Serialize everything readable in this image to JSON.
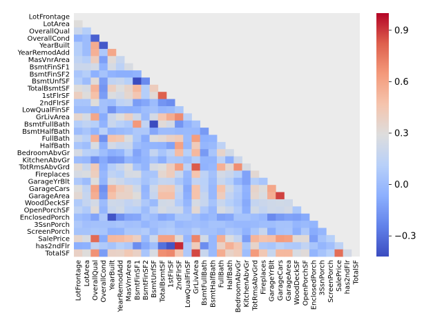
{
  "chart_data": {
    "type": "heatmap",
    "subtype": "lower-triangle correlation matrix",
    "title": "",
    "xlabel": "",
    "ylabel": "",
    "colormap": "coolwarm",
    "masked_color": "#ebebeb",
    "vmin": -0.42,
    "vmax": 1.0,
    "colorbar_ticks": [
      -0.3,
      0.0,
      0.3,
      0.6,
      0.9
    ],
    "colorbar_tick_labels": [
      "−0.3",
      "0.0",
      "0.3",
      "0.6",
      "0.9"
    ],
    "variables": [
      "LotFrontage",
      "LotArea",
      "OverallQual",
      "OverallCond",
      "YearBuilt",
      "YearRemodAdd",
      "MasVnrArea",
      "BsmtFinSF1",
      "BsmtFinSF2",
      "BsmtUnfSF",
      "TotalBsmtSF",
      "1stFlrSF",
      "2ndFlrSF",
      "LowQualFinSF",
      "GrLivArea",
      "BsmtFullBath",
      "BsmtHalfBath",
      "FullBath",
      "HalfBath",
      "BedroomAbvGr",
      "KitchenAbvGr",
      "TotRmsAbvGrd",
      "Fireplaces",
      "GarageYrBlt",
      "GarageCars",
      "GarageArea",
      "WoodDeckSF",
      "OpenPorchSF",
      "EnclosedPorch",
      "3SsnPorch",
      "ScreenPorch",
      "SalePrice",
      "has2ndFlr",
      "TotalSF"
    ],
    "values": [
      [],
      [
        0.3
      ],
      [
        0.2,
        0.1
      ],
      [
        -0.05,
        0.0,
        -0.35
      ],
      [
        0.1,
        0.0,
        0.57,
        -0.38
      ],
      [
        0.1,
        0.0,
        0.55,
        0.07,
        0.59
      ],
      [
        0.15,
        0.1,
        0.41,
        -0.13,
        0.31,
        0.18
      ],
      [
        0.2,
        0.2,
        0.24,
        -0.05,
        0.25,
        0.13,
        0.26
      ],
      [
        0.05,
        0.1,
        -0.06,
        0.04,
        -0.05,
        -0.07,
        -0.07,
        -0.05
      ],
      [
        0.1,
        0.0,
        0.31,
        -0.14,
        0.15,
        0.18,
        0.11,
        -0.5,
        -0.21
      ],
      [
        0.3,
        0.25,
        0.54,
        -0.17,
        0.39,
        0.29,
        0.36,
        0.52,
        0.1,
        0.41
      ],
      [
        0.4,
        0.3,
        0.48,
        -0.14,
        0.28,
        0.24,
        0.34,
        0.45,
        0.1,
        0.32,
        0.82
      ],
      [
        0.05,
        0.05,
        0.3,
        0.03,
        0.01,
        0.14,
        0.17,
        -0.14,
        -0.1,
        0.0,
        -0.17,
        -0.2
      ],
      [
        0.0,
        0.0,
        -0.03,
        0.03,
        -0.18,
        -0.06,
        -0.07,
        -0.06,
        0.01,
        0.03,
        -0.03,
        -0.01,
        0.06
      ],
      [
        0.35,
        0.25,
        0.59,
        -0.08,
        0.2,
        0.29,
        0.39,
        0.21,
        -0.01,
        0.24,
        0.45,
        0.57,
        0.69,
        0.13
      ],
      [
        0.1,
        0.15,
        0.11,
        -0.05,
        0.19,
        0.12,
        0.08,
        0.65,
        0.16,
        -0.42,
        0.31,
        0.24,
        -0.17,
        -0.05,
        0.03
      ],
      [
        0.0,
        0.05,
        -0.04,
        0.12,
        -0.04,
        -0.01,
        0.01,
        0.07,
        0.07,
        -0.1,
        0.0,
        0.0,
        -0.02,
        -0.01,
        -0.02,
        -0.15
      ],
      [
        0.2,
        0.12,
        0.55,
        -0.19,
        0.47,
        0.44,
        0.27,
        0.06,
        -0.08,
        0.29,
        0.32,
        0.38,
        0.42,
        0.0,
        0.63,
        -0.06,
        -0.05
      ],
      [
        0.05,
        0.01,
        0.27,
        -0.06,
        0.24,
        0.18,
        0.2,
        0.0,
        -0.03,
        -0.04,
        -0.05,
        -0.12,
        0.61,
        -0.02,
        0.42,
        -0.03,
        -0.01,
        0.14
      ],
      [
        0.25,
        0.12,
        0.1,
        0.01,
        -0.07,
        -0.04,
        0.1,
        -0.11,
        -0.02,
        0.17,
        0.05,
        0.13,
        0.5,
        0.11,
        0.52,
        -0.15,
        0.05,
        0.36,
        0.23
      ],
      [
        0.0,
        -0.02,
        -0.18,
        -0.09,
        -0.17,
        -0.15,
        -0.04,
        -0.08,
        -0.04,
        0.03,
        -0.07,
        0.07,
        0.06,
        0.01,
        0.1,
        -0.04,
        -0.04,
        0.13,
        -0.07,
        0.2
      ],
      [
        0.32,
        0.19,
        0.43,
        -0.06,
        0.1,
        0.19,
        0.28,
        0.04,
        -0.04,
        0.25,
        0.29,
        0.41,
        0.62,
        0.13,
        0.83,
        -0.05,
        -0.02,
        0.55,
        0.34,
        0.68,
        0.26
      ],
      [
        0.25,
        0.27,
        0.4,
        -0.02,
        0.15,
        0.11,
        0.25,
        0.26,
        0.05,
        0.05,
        0.34,
        0.41,
        0.19,
        -0.02,
        0.46,
        0.14,
        0.03,
        0.24,
        0.2,
        0.11,
        -0.12,
        0.33
      ],
      [
        0.07,
        0.0,
        0.29,
        -0.04,
        0.26,
        0.21,
        0.14,
        0.12,
        0.04,
        0.1,
        0.18,
        0.17,
        0.06,
        -0.04,
        0.16,
        0.12,
        0.0,
        0.19,
        0.11,
        -0.03,
        -0.12,
        0.1,
        0.05
      ],
      [
        0.29,
        0.15,
        0.6,
        -0.19,
        0.54,
        0.42,
        0.36,
        0.22,
        -0.04,
        0.21,
        0.43,
        0.44,
        0.18,
        -0.09,
        0.47,
        0.13,
        -0.02,
        0.47,
        0.22,
        0.09,
        -0.05,
        0.36,
        0.3,
        0.59
      ],
      [
        0.33,
        0.18,
        0.56,
        -0.15,
        0.48,
        0.37,
        0.37,
        0.3,
        -0.02,
        0.18,
        0.49,
        0.49,
        0.14,
        -0.07,
        0.47,
        0.18,
        -0.02,
        0.41,
        0.16,
        0.07,
        -0.06,
        0.34,
        0.27,
        0.56,
        0.88
      ],
      [
        0.08,
        0.17,
        0.24,
        0.0,
        0.22,
        0.21,
        0.16,
        0.2,
        0.07,
        -0.01,
        0.23,
        0.24,
        0.09,
        -0.03,
        0.25,
        0.18,
        0.04,
        0.19,
        0.11,
        0.05,
        -0.09,
        0.17,
        0.2,
        0.22,
        0.23,
        0.22
      ],
      [
        0.15,
        0.08,
        0.31,
        -0.03,
        0.19,
        0.23,
        0.13,
        0.11,
        0.0,
        0.13,
        0.25,
        0.21,
        0.21,
        0.02,
        0.33,
        0.07,
        -0.02,
        0.26,
        0.2,
        0.09,
        -0.07,
        0.23,
        0.17,
        0.22,
        0.21,
        0.24,
        0.06
      ],
      [
        0.01,
        -0.02,
        -0.11,
        0.07,
        -0.39,
        -0.19,
        -0.11,
        -0.1,
        0.04,
        0.0,
        -0.1,
        -0.07,
        0.06,
        0.06,
        0.01,
        -0.05,
        -0.01,
        -0.12,
        -0.1,
        0.04,
        0.04,
        0.01,
        -0.02,
        -0.21,
        -0.15,
        -0.12,
        -0.13,
        -0.09
      ],
      [
        0.07,
        0.02,
        0.03,
        0.03,
        0.03,
        0.05,
        0.02,
        0.03,
        -0.03,
        0.02,
        0.04,
        0.06,
        -0.02,
        0.0,
        0.02,
        0.0,
        0.04,
        0.04,
        0.0,
        -0.02,
        -0.02,
        -0.01,
        0.01,
        0.01,
        0.04,
        0.04,
        -0.03,
        -0.01,
        -0.04
      ],
      [
        0.04,
        0.04,
        0.06,
        0.05,
        -0.05,
        -0.04,
        0.06,
        0.06,
        0.09,
        -0.01,
        0.08,
        0.09,
        0.04,
        0.03,
        0.1,
        0.03,
        0.03,
        -0.01,
        0.07,
        0.04,
        -0.05,
        0.06,
        0.18,
        -0.08,
        0.04,
        0.05,
        -0.07,
        0.07,
        -0.08,
        -0.03
      ],
      [
        0.35,
        0.26,
        0.79,
        -0.08,
        0.52,
        0.51,
        0.47,
        0.39,
        -0.01,
        0.21,
        0.61,
        0.61,
        0.32,
        -0.03,
        0.71,
        0.23,
        -0.02,
        0.56,
        0.28,
        0.17,
        -0.14,
        0.53,
        0.47,
        0.49,
        0.64,
        0.62,
        0.32,
        0.32,
        -0.13,
        0.04,
        0.11
      ],
      [
        -0.07,
        -0.06,
        0.15,
        0.08,
        0.04,
        0.11,
        0.07,
        -0.2,
        -0.09,
        0.01,
        -0.3,
        -0.39,
        0.93,
        0.07,
        0.42,
        -0.2,
        -0.02,
        0.38,
        0.55,
        0.45,
        0.06,
        0.36,
        0.07,
        0.05,
        0.12,
        0.08,
        0.07,
        0.16,
        0.05,
        -0.03,
        0.02,
        0.14
      ],
      [
        0.38,
        0.3,
        0.67,
        -0.14,
        0.38,
        0.37,
        0.44,
        0.38,
        0.05,
        0.26,
        0.68,
        0.7,
        0.45,
        0.07,
        0.87,
        0.19,
        -0.01,
        0.57,
        0.37,
        0.42,
        0.01,
        0.64,
        0.44,
        0.18,
        0.52,
        0.52,
        0.26,
        0.31,
        -0.04,
        0.04,
        0.11,
        0.78,
        0.24
      ]
    ]
  }
}
